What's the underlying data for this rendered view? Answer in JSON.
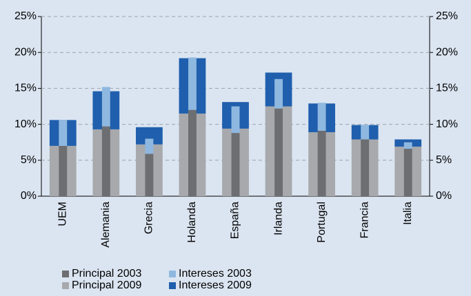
{
  "chart_data": {
    "type": "bar",
    "categories": [
      "UEM",
      "Alemania",
      "Grecia",
      "Holanda",
      "España",
      "Irlanda",
      "Portugal",
      "Francia",
      "Italia"
    ],
    "series": [
      {
        "name": "Principal 2003",
        "color": "#6d6e71",
        "values": [
          7.0,
          9.7,
          5.9,
          12.0,
          8.8,
          12.2,
          9.1,
          7.9,
          6.6
        ]
      },
      {
        "name": "Intereses 2003",
        "color": "#8fb8e0",
        "values": [
          3.6,
          5.5,
          2.1,
          7.3,
          3.7,
          4.1,
          3.9,
          2.0,
          0.9
        ]
      },
      {
        "name": "Principal 2009",
        "color": "#a7a9ac",
        "values": [
          7.0,
          9.3,
          7.2,
          11.5,
          9.4,
          12.5,
          8.9,
          7.9,
          6.9
        ]
      },
      {
        "name": "Intereses 2009",
        "color": "#1f5fad",
        "values": [
          3.6,
          5.3,
          2.4,
          7.7,
          3.7,
          4.7,
          4.0,
          2.0,
          1.0
        ]
      }
    ],
    "ylim": [
      0,
      25
    ],
    "yticks": [
      {
        "value": 0,
        "label": "0%"
      },
      {
        "value": 5,
        "label": "5%"
      },
      {
        "value": 10,
        "label": "10%"
      },
      {
        "value": 15,
        "label": "15%"
      },
      {
        "value": 20,
        "label": "20%"
      },
      {
        "value": 25,
        "label": "25%"
      }
    ],
    "grid": true
  }
}
